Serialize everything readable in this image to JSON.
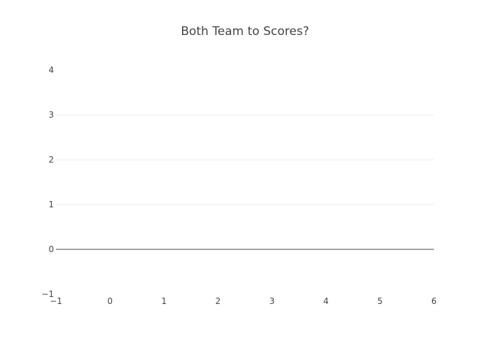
{
  "chart_data": {
    "type": "line",
    "title": "Both Team to Scores?",
    "xlabel": "",
    "ylabel": "",
    "xlim": [
      -1,
      6
    ],
    "ylim": [
      -1,
      4
    ],
    "x_ticks": [
      -1,
      0,
      1,
      2,
      3,
      4,
      5,
      6
    ],
    "y_ticks": [
      -1,
      0,
      1,
      2,
      3,
      4
    ],
    "x_tick_labels": [
      "−1",
      "0",
      "1",
      "2",
      "3",
      "4",
      "5",
      "6"
    ],
    "y_tick_labels": [
      "−1",
      "0",
      "1",
      "2",
      "3",
      "4"
    ],
    "grid": true,
    "zeroline": true,
    "series": [],
    "colors": {
      "grid": "#eeeeee",
      "zeroline": "#444444",
      "text": "#444444",
      "background": "#ffffff"
    }
  }
}
